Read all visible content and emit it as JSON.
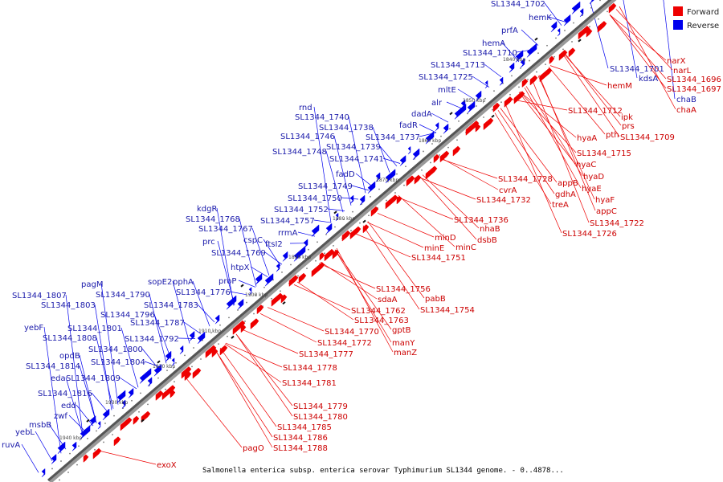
{
  "caption": "Salmonella enterica subsp. enterica serovar Typhimurium SL1344 genome. - 0..4878...",
  "legend": [
    {
      "label": "Forward",
      "color": "#ee0000"
    },
    {
      "label": "Reverse",
      "color": "#0000ee"
    }
  ],
  "colors": {
    "forward": "#ee0000",
    "reverse": "#0000ee",
    "forward_label": "#cc0000",
    "reverse_label": "#1a1aaa",
    "backbone": "#666666",
    "tick_text": "#444444"
  },
  "scale": {
    "start_kbp": 1830,
    "end_kbp": 1945
  },
  "ticks": [
    "1840 kbp",
    "1850 kbp",
    "1860 kbp",
    "1870 kbp",
    "1880 kbp",
    "1890 kbp",
    "1900 kbp",
    "1910 kbp",
    "1920 kbp",
    "1930 kbp",
    "1940 kbp"
  ],
  "reverse_labels": [
    "SL1344_1702",
    "hemK",
    "prfA",
    "hemA",
    "SL1344_1710",
    "SL1344_1713",
    "SL1344_1725",
    "mltE",
    "alr",
    "dadA",
    "fadR",
    "rnd",
    "SL1344_1740",
    "SL1344_1738",
    "SL1344_1746",
    "SL1344_1737",
    "SL1344_1739",
    "SL1344_1748",
    "SL1344_1741",
    "fadD",
    "SL1344_1749",
    "SL1344_1750",
    "SL1344_1752",
    "kdgR",
    "SL1344_1768",
    "SL1344_1757",
    "rrmA",
    "SL1344_1767",
    "cspC",
    "prc",
    "ftsI2",
    "SL1344_1769",
    "htpX",
    "sopE2",
    "pphA",
    "proP",
    "pagM",
    "SL1344_1776",
    "SL1344_1807",
    "SL1344_1790",
    "SL1344_1803",
    "SL1344_1783",
    "SL1344_1796",
    "SL1344_1787",
    "SL1344_1801",
    "yebF",
    "SL1344_1792",
    "SL1344_1808",
    "SL1344_1800",
    "opdB",
    "SL1344_1804",
    "SL1344_1814",
    "eda",
    "SL1344_1809",
    "SL1344_1816",
    "edd",
    "zwf",
    "msbB",
    "yebL",
    "ruvA",
    "SL1344_1701",
    "kdsA",
    "chaB"
  ],
  "forward_labels": [
    "narX",
    "narL",
    "SL1344_1696",
    "SL1344_1697",
    "chaA",
    "hemM",
    "ipk",
    "SL1344_1712",
    "prs",
    "pth",
    "SL1344_1709",
    "hyaA",
    "SL1344_1715",
    "hyaC",
    "appB",
    "hyaD",
    "SL1344_1728",
    "hyaE",
    "cvrA",
    "gdhA",
    "hyaF",
    "SL1344_1732",
    "treA",
    "appC",
    "SL1344_1722",
    "SL1344_1726",
    "SL1344_1736",
    "nhaB",
    "dsbB",
    "minD",
    "minE",
    "minC",
    "SL1344_1751",
    "SL1344_1756",
    "sdaA",
    "pabB",
    "SL1344_1762",
    "SL1344_1754",
    "SL1344_1763",
    "gptB",
    "SL1344_1770",
    "manY",
    "SL1344_1772",
    "manZ",
    "SL1344_1777",
    "SL1344_1778",
    "SL1344_1781",
    "SL1344_1779",
    "SL1344_1780",
    "SL1344_1785",
    "SL1344_1786",
    "pagO",
    "SL1344_1788",
    "exoX"
  ]
}
